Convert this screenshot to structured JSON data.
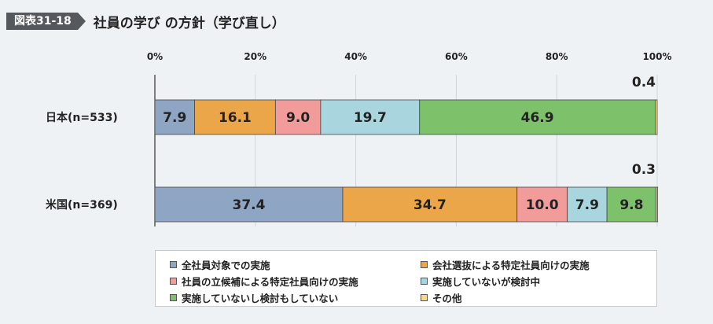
{
  "header": {
    "figure_label": "図表31-18",
    "title": "社員の学び の方針（学び直し）"
  },
  "chart_data": {
    "type": "bar",
    "orientation": "horizontal",
    "stacked": true,
    "x_ticks": [
      "0%",
      "20%",
      "40%",
      "60%",
      "80%",
      "100%"
    ],
    "xlim": [
      0,
      100
    ],
    "categories": [
      "日本(n=533)",
      "米国(n=369)"
    ],
    "series": [
      {
        "name": "全社員対象での実施",
        "color": "#8fa5c4",
        "values": [
          7.9,
          37.4
        ]
      },
      {
        "name": "会社選抜による特定社員向けの実施",
        "color": "#eba64a",
        "values": [
          16.1,
          34.7
        ]
      },
      {
        "name": "社員の立候補による特定社員向けの実施",
        "color": "#f29b9b",
        "values": [
          9.0,
          10.0
        ]
      },
      {
        "name": "実施していないが検討中",
        "color": "#a9d6de",
        "values": [
          19.7,
          7.9
        ]
      },
      {
        "name": "実施していないし検討もしていない",
        "color": "#7dc26a",
        "values": [
          46.9,
          9.8
        ]
      },
      {
        "name": "その他",
        "color": "#f5d98f",
        "values": [
          0.4,
          0.3
        ]
      }
    ],
    "labels": [
      [
        "7.9",
        "16.1",
        "9.0",
        "19.7",
        "46.9",
        "0.4"
      ],
      [
        "37.4",
        "34.7",
        "10.0",
        "7.9",
        "9.8",
        "0.3"
      ]
    ],
    "legend_position": "bottom"
  }
}
